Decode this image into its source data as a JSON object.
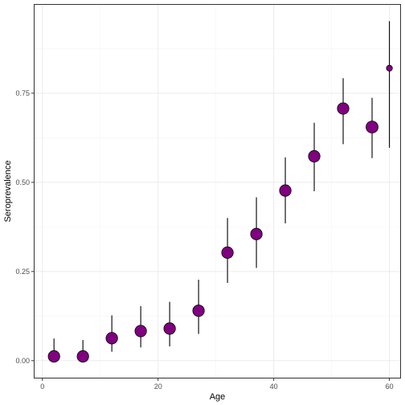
{
  "chart_data": {
    "type": "scatter",
    "title": "",
    "xlabel": "Age",
    "ylabel": "Seroprevalence",
    "xlim": [
      -1.5,
      62
    ],
    "ylim": [
      -0.05,
      1.0
    ],
    "x_ticks": [
      0,
      20,
      40,
      60
    ],
    "y_ticks": [
      0.0,
      0.25,
      0.5,
      0.75
    ],
    "x_tick_labels": [
      "0",
      "20",
      "40",
      "60"
    ],
    "y_tick_labels": [
      "0.00",
      "0.25",
      "0.50",
      "0.75"
    ],
    "grid": true,
    "legend": "none",
    "colors": {
      "point_fill": "#800080",
      "point_stroke": "#000000",
      "errorbar": "#000000",
      "panel_border": "#333333",
      "grid_major": "#ebebeb",
      "grid_minor": "#f5f5f5"
    },
    "points": [
      {
        "x": 2,
        "y": 0.012,
        "lower": 0.0,
        "upper": 0.062,
        "weight": 3
      },
      {
        "x": 7,
        "y": 0.012,
        "lower": 0.0,
        "upper": 0.058,
        "weight": 3
      },
      {
        "x": 12,
        "y": 0.063,
        "lower": 0.025,
        "upper": 0.127,
        "weight": 3
      },
      {
        "x": 17,
        "y": 0.083,
        "lower": 0.037,
        "upper": 0.153,
        "weight": 3
      },
      {
        "x": 22,
        "y": 0.09,
        "lower": 0.04,
        "upper": 0.165,
        "weight": 3
      },
      {
        "x": 27,
        "y": 0.14,
        "lower": 0.075,
        "upper": 0.227,
        "weight": 3
      },
      {
        "x": 32,
        "y": 0.303,
        "lower": 0.218,
        "upper": 0.4,
        "weight": 3
      },
      {
        "x": 37,
        "y": 0.355,
        "lower": 0.26,
        "upper": 0.458,
        "weight": 3
      },
      {
        "x": 42,
        "y": 0.477,
        "lower": 0.385,
        "upper": 0.57,
        "weight": 3
      },
      {
        "x": 47,
        "y": 0.573,
        "lower": 0.475,
        "upper": 0.667,
        "weight": 3
      },
      {
        "x": 52,
        "y": 0.707,
        "lower": 0.607,
        "upper": 0.792,
        "weight": 3
      },
      {
        "x": 57,
        "y": 0.655,
        "lower": 0.568,
        "upper": 0.737,
        "weight": 3.3
      },
      {
        "x": 60,
        "y": 0.82,
        "lower": 0.597,
        "upper": 0.952,
        "weight": 0.5
      }
    ]
  }
}
